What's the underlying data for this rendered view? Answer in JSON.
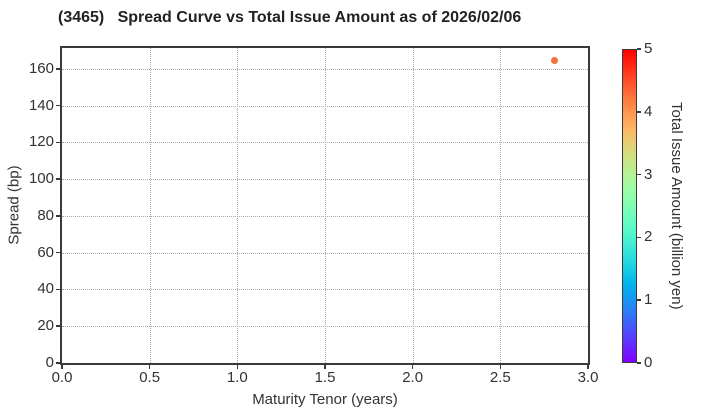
{
  "chart_data": {
    "type": "scatter",
    "title": "(3465)   Spread Curve vs Total Issue Amount as of 2026/02/06",
    "xlabel": "Maturity Tenor (years)",
    "ylabel": "Spread (bp)",
    "xlim": [
      0.0,
      3.0
    ],
    "ylim": [
      0,
      171.4
    ],
    "x_ticks": [
      "0.0",
      "0.5",
      "1.0",
      "1.5",
      "2.0",
      "2.5",
      "3.0"
    ],
    "y_ticks": [
      0,
      20,
      40,
      60,
      80,
      100,
      120,
      140,
      160
    ],
    "grid": true,
    "grid_style": "dotted",
    "legend": "none",
    "points": [
      {
        "x": 2.81,
        "y": 164.5,
        "color_value": 4.2,
        "color": "#f8703c"
      }
    ],
    "colorbar": {
      "label": "Total Issue Amount (billion yen)",
      "min": 0,
      "max": 5,
      "ticks": [
        0,
        1,
        2,
        3,
        4,
        5
      ],
      "colormap": "rainbow",
      "color_bottom": "#8000ff",
      "color_top": "#ff0000"
    },
    "colors": {
      "spine": "#3a3a3a",
      "grid": "#a9a9a9",
      "text": "#333333",
      "title_text": "#222222",
      "background": "#ffffff"
    }
  }
}
